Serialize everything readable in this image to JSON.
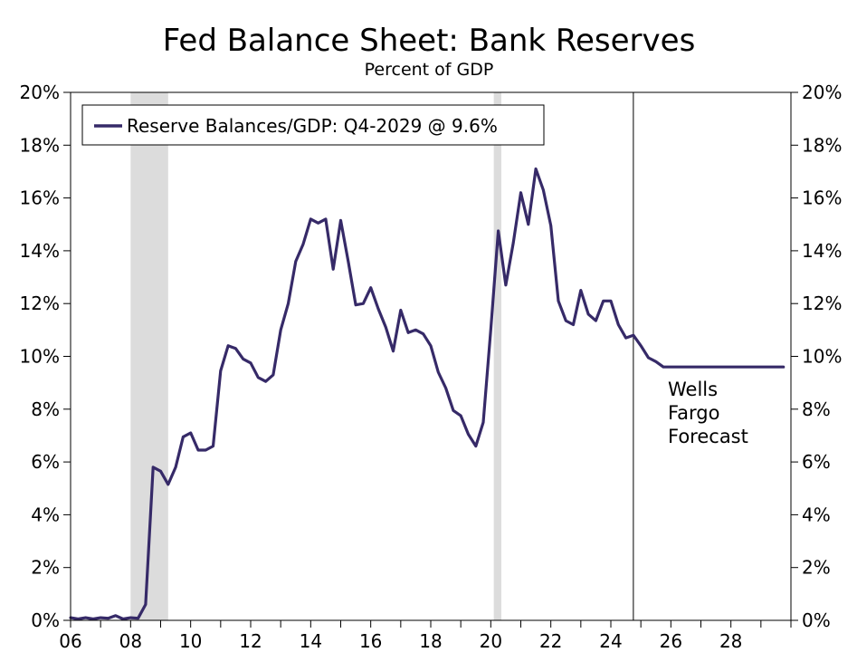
{
  "chart_data": {
    "type": "line",
    "title": "Fed Balance Sheet: Bank Reserves",
    "subtitle": "Percent of GDP",
    "xlabel": "",
    "ylabel": "",
    "x_range": [
      2006,
      2030
    ],
    "ylim": [
      0,
      20
    ],
    "y_ticks": [
      0,
      2,
      4,
      6,
      8,
      10,
      12,
      14,
      16,
      18,
      20
    ],
    "y_tick_labels": [
      "0%",
      "2%",
      "4%",
      "6%",
      "8%",
      "10%",
      "12%",
      "14%",
      "16%",
      "18%",
      "20%"
    ],
    "x_ticks": [
      2006,
      2008,
      2010,
      2012,
      2014,
      2016,
      2018,
      2020,
      2022,
      2024,
      2026,
      2028
    ],
    "x_tick_labels": [
      "06",
      "08",
      "10",
      "12",
      "14",
      "16",
      "18",
      "20",
      "22",
      "24",
      "26",
      "28"
    ],
    "grid": false,
    "legend_position": "top-left",
    "recessions": [
      [
        2008.0,
        2009.25
      ],
      [
        2020.1,
        2020.35
      ]
    ],
    "forecast_start": 2024.75,
    "annotation": "Wells\nFargo\nForecast",
    "series": [
      {
        "name": "Reserve Balances/GDP: Q4-2029 @ 9.6%",
        "color": "#362a68",
        "x": [
          2006.0,
          2006.25,
          2006.5,
          2006.75,
          2007.0,
          2007.25,
          2007.5,
          2007.75,
          2008.0,
          2008.25,
          2008.5,
          2008.75,
          2009.0,
          2009.25,
          2009.5,
          2009.75,
          2010.0,
          2010.25,
          2010.5,
          2010.75,
          2011.0,
          2011.25,
          2011.5,
          2011.75,
          2012.0,
          2012.25,
          2012.5,
          2012.75,
          2013.0,
          2013.25,
          2013.5,
          2013.75,
          2014.0,
          2014.25,
          2014.5,
          2014.75,
          2015.0,
          2015.25,
          2015.5,
          2015.75,
          2016.0,
          2016.25,
          2016.5,
          2016.75,
          2017.0,
          2017.25,
          2017.5,
          2017.75,
          2018.0,
          2018.25,
          2018.5,
          2018.75,
          2019.0,
          2019.25,
          2019.5,
          2019.75,
          2020.0,
          2020.25,
          2020.5,
          2020.75,
          2021.0,
          2021.25,
          2021.5,
          2021.75,
          2022.0,
          2022.25,
          2022.5,
          2022.75,
          2023.0,
          2023.25,
          2023.5,
          2023.75,
          2024.0,
          2024.25,
          2024.5,
          2024.75,
          2025.0,
          2025.25,
          2025.5,
          2025.75,
          2026.0,
          2026.5,
          2027.0,
          2027.5,
          2028.0,
          2028.5,
          2029.0,
          2029.5,
          2029.75
        ],
        "values": [
          0.1,
          0.05,
          0.1,
          0.05,
          0.1,
          0.08,
          0.18,
          0.05,
          0.1,
          0.08,
          0.6,
          5.8,
          5.65,
          5.15,
          5.8,
          6.95,
          7.1,
          6.45,
          6.45,
          6.6,
          9.45,
          10.4,
          10.3,
          9.9,
          9.75,
          9.2,
          9.05,
          9.3,
          11.0,
          12.0,
          13.6,
          14.25,
          15.2,
          15.05,
          15.2,
          13.3,
          15.15,
          13.6,
          11.95,
          12.0,
          12.6,
          11.8,
          11.1,
          10.2,
          11.75,
          10.9,
          11.0,
          10.85,
          10.4,
          9.4,
          8.8,
          7.95,
          7.75,
          7.05,
          6.6,
          7.5,
          11.0,
          14.75,
          12.7,
          14.3,
          16.2,
          15.0,
          17.1,
          16.3,
          14.95,
          12.1,
          11.35,
          11.2,
          12.5,
          11.6,
          11.35,
          12.1,
          12.1,
          11.2,
          10.7,
          10.8,
          10.4,
          9.95,
          9.8,
          9.6,
          9.6,
          9.6,
          9.6,
          9.6,
          9.6,
          9.6,
          9.6,
          9.6,
          9.6
        ]
      }
    ]
  }
}
